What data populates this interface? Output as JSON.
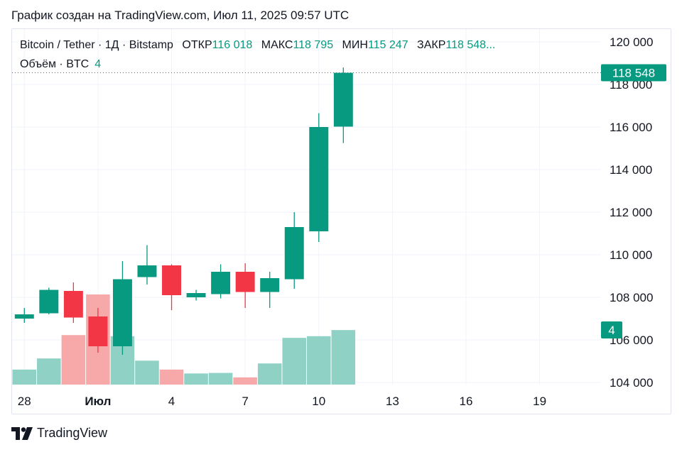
{
  "caption": "График создан на TradingView.com, Июл 11, 2025 09:57 UTC",
  "legend": {
    "symbol": "Bitcoin / Tether · 1Д · Bitstamp",
    "open_label": "ОТКР",
    "open_value": "116 018",
    "high_label": "МАКС",
    "high_value": "118 795",
    "low_label": "МИН",
    "low_value": "115 247",
    "close_label": "ЗАКР",
    "close_value": "118 548..."
  },
  "volume_legend": {
    "label": "Объём · BTC",
    "value": "4"
  },
  "footer": {
    "brand": "TradingView",
    "logo_icon": "tradingview-logo-icon"
  },
  "colors": {
    "up": "#089981",
    "down": "#f23645",
    "up_volume": "#8fd1c5",
    "down_volume": "#f7a9a9",
    "grid": "#f0f3fa"
  },
  "chart_data": {
    "type": "candlestick",
    "symbol": "Bitcoin / Tether",
    "interval": "1Д",
    "exchange": "Bitstamp",
    "price_ticks": [
      "104 000",
      "106 000",
      "108 000",
      "110 000",
      "112 000",
      "114 000",
      "116 000",
      "118 000",
      "120 000"
    ],
    "price_tick_values": [
      104000,
      106000,
      108000,
      110000,
      112000,
      114000,
      116000,
      118000,
      120000
    ],
    "ylim": [
      103900,
      120600
    ],
    "x_ticks": [
      "28",
      "Июл",
      "4",
      "7",
      "10",
      "13",
      "16",
      "19"
    ],
    "x_tick_days": [
      0,
      3,
      6,
      9,
      12,
      15,
      18,
      21
    ],
    "xlim": [
      -0.5,
      23.5
    ],
    "last_price_label": "118 548",
    "last_volume_label": "4",
    "candles": [
      {
        "day": 0,
        "open": 107000,
        "high": 107500,
        "low": 106800,
        "close": 107200
      },
      {
        "day": 1,
        "open": 107250,
        "high": 108450,
        "low": 107200,
        "close": 108350
      },
      {
        "day": 2,
        "open": 108300,
        "high": 108700,
        "low": 106800,
        "close": 107050
      },
      {
        "day": 3,
        "open": 107100,
        "high": 107500,
        "low": 105400,
        "close": 105700
      },
      {
        "day": 4,
        "open": 105700,
        "high": 109700,
        "low": 105300,
        "close": 108850
      },
      {
        "day": 5,
        "open": 108950,
        "high": 110450,
        "low": 108600,
        "close": 109500
      },
      {
        "day": 6,
        "open": 109500,
        "high": 109550,
        "low": 107400,
        "close": 108100
      },
      {
        "day": 7,
        "open": 108000,
        "high": 108350,
        "low": 107850,
        "close": 108200
      },
      {
        "day": 8,
        "open": 108150,
        "high": 109550,
        "low": 107950,
        "close": 109200
      },
      {
        "day": 9,
        "open": 109200,
        "high": 109600,
        "low": 107500,
        "close": 108250
      },
      {
        "day": 10,
        "open": 108250,
        "high": 109200,
        "low": 107500,
        "close": 108900
      },
      {
        "day": 11,
        "open": 108850,
        "high": 112000,
        "low": 108400,
        "close": 111300
      },
      {
        "day": 12,
        "open": 111100,
        "high": 116650,
        "low": 110600,
        "close": 116000
      },
      {
        "day": 13,
        "open": 116018,
        "high": 118795,
        "low": 115247,
        "close": 118548
      }
    ],
    "volume_relative": [
      0.27,
      0.47,
      0.89,
      1.62,
      0.87,
      0.43,
      0.27,
      0.2,
      0.21,
      0.13,
      0.38,
      0.84,
      0.87,
      0.98
    ]
  }
}
